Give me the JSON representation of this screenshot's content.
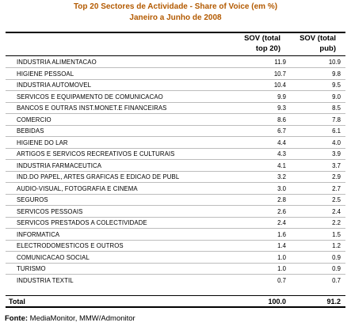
{
  "title_line1": "Top 20 Sectores de Actividade - Share of Voice (em %)",
  "title_line2": "Janeiro a Junho de 2008",
  "columns": {
    "col1_line1": "SOV (total",
    "col1_line2": "top 20)",
    "col2_line1": "SOV (total",
    "col2_line2": "pub)"
  },
  "rows": [
    {
      "sector": "INDUSTRIA ALIMENTACAO",
      "sov_top20": "11.9",
      "sov_pub": "10.9"
    },
    {
      "sector": "HIGIENE PESSOAL",
      "sov_top20": "10.7",
      "sov_pub": "9.8"
    },
    {
      "sector": "INDUSTRIA AUTOMOVEL",
      "sov_top20": "10.4",
      "sov_pub": "9.5"
    },
    {
      "sector": "SERVICOS E EQUIPAMENTO DE COMUNICACAO",
      "sov_top20": "9.9",
      "sov_pub": "9.0"
    },
    {
      "sector": "BANCOS E OUTRAS INST.MONET.E FINANCEIRAS",
      "sov_top20": "9.3",
      "sov_pub": "8.5"
    },
    {
      "sector": "COMERCIO",
      "sov_top20": "8.6",
      "sov_pub": "7.8"
    },
    {
      "sector": "BEBIDAS",
      "sov_top20": "6.7",
      "sov_pub": "6.1"
    },
    {
      "sector": "HIGIENE DO LAR",
      "sov_top20": "4.4",
      "sov_pub": "4.0"
    },
    {
      "sector": "ARTIGOS E SERVICOS RECREATIVOS E CULTURAIS",
      "sov_top20": "4.3",
      "sov_pub": "3.9"
    },
    {
      "sector": "INDUSTRIA FARMACEUTICA",
      "sov_top20": "4.1",
      "sov_pub": "3.7"
    },
    {
      "sector": "IND.DO PAPEL, ARTES GRAFICAS E EDICAO DE PUBL",
      "sov_top20": "3.2",
      "sov_pub": "2.9"
    },
    {
      "sector": "AUDIO-VISUAL, FOTOGRAFIA E CINEMA",
      "sov_top20": "3.0",
      "sov_pub": "2.7"
    },
    {
      "sector": "SEGUROS",
      "sov_top20": "2.8",
      "sov_pub": "2.5"
    },
    {
      "sector": "SERVICOS PESSOAIS",
      "sov_top20": "2.6",
      "sov_pub": "2.4"
    },
    {
      "sector": "SERVICOS PRESTADOS A COLECTIVIDADE",
      "sov_top20": "2.4",
      "sov_pub": "2.2"
    },
    {
      "sector": "INFORMATICA",
      "sov_top20": "1.6",
      "sov_pub": "1.5"
    },
    {
      "sector": "ELECTRODOMESTICOS E OUTROS",
      "sov_top20": "1.4",
      "sov_pub": "1.2"
    },
    {
      "sector": "COMUNICACAO SOCIAL",
      "sov_top20": "1.0",
      "sov_pub": "0.9"
    },
    {
      "sector": "TURISMO",
      "sov_top20": "1.0",
      "sov_pub": "0.9"
    },
    {
      "sector": "INDUSTRIA TEXTIL",
      "sov_top20": "0.7",
      "sov_pub": "0.7"
    }
  ],
  "total": {
    "label": "Total",
    "sov_top20": "100.0",
    "sov_pub": "91.2"
  },
  "source": {
    "label": "Fonte:",
    "text": "MediaMonitor, MMW/Admonitor"
  },
  "colors": {
    "title": "#b35a00"
  }
}
